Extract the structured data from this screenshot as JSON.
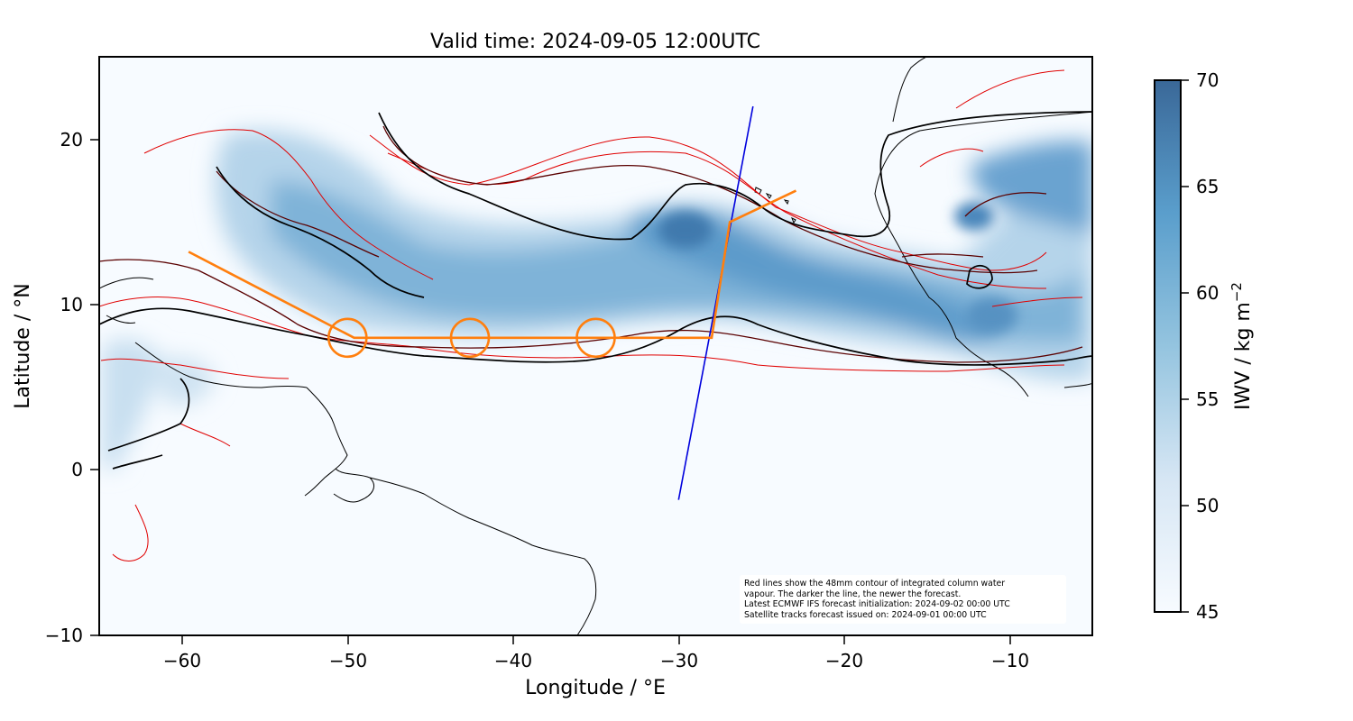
{
  "title": "Valid time: 2024-09-05 12:00UTC",
  "xlabel": "Longitude / °E",
  "ylabel": "Latitude / °N",
  "x_ticks": [
    "−60",
    "−50",
    "−40",
    "−30",
    "−20",
    "−10"
  ],
  "y_ticks": [
    "20",
    "10",
    "0",
    "−10"
  ],
  "colorbar": {
    "label": "IWV / kg m",
    "label_superscript": "−2",
    "ticks": [
      "70",
      "65",
      "60",
      "55",
      "50",
      "45"
    ],
    "min": 45,
    "max": 70,
    "colormap": "Blues"
  },
  "annotation": [
    "Red lines show the 48mm contour of integrated column water",
    "vapour. The darker the line, the newer the forecast.",
    "Latest ECMWF IFS forecast initialization: 2024-09-02 00:00 UTC",
    "Satellite tracks forecast issued on: 2024-09-01 00:00 UTC"
  ],
  "colors": {
    "contour_newest": "#000000",
    "contour_mid": "#5a0000",
    "contour_old": "#e00000",
    "flight_track": "#ff7f0e",
    "satellite_track": "#0000dd"
  },
  "chart_data": {
    "type": "map",
    "xlim": [
      -65,
      -5
    ],
    "ylim": [
      -10,
      25
    ],
    "flight_track": {
      "lon": [
        -59.6,
        -49.6,
        -28.0,
        -26.9,
        -22.9
      ],
      "lat": [
        13.2,
        8.0,
        8.0,
        15.0,
        16.9
      ]
    },
    "circles": [
      {
        "lon": -50.0,
        "lat": 8.0
      },
      {
        "lon": -42.6,
        "lat": 8.0
      },
      {
        "lon": -35.0,
        "lat": 8.0
      }
    ],
    "satellite_track": {
      "lon": [
        -30.0,
        -25.5
      ],
      "lat": [
        -1.8,
        22.0
      ]
    }
  }
}
